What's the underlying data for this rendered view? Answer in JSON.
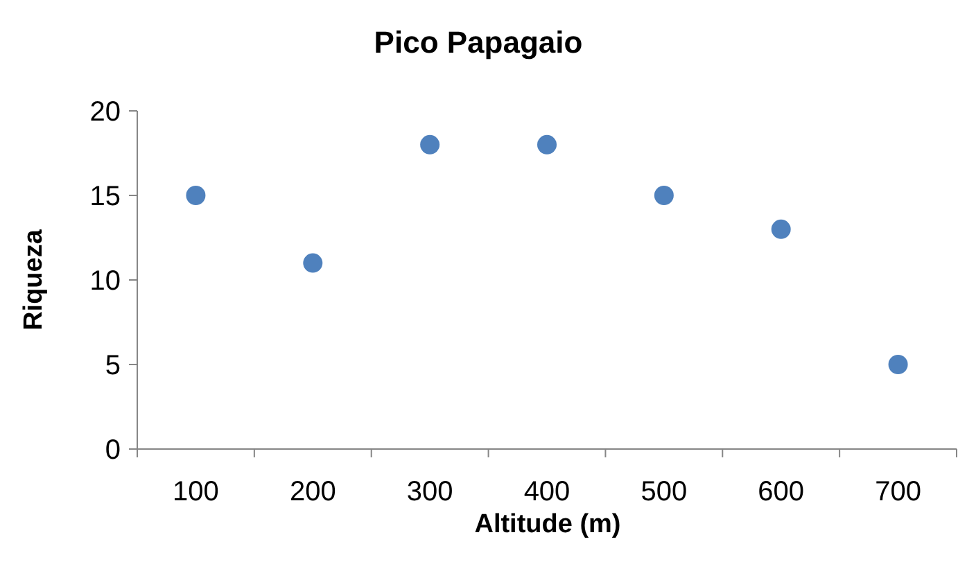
{
  "chart_data": {
    "type": "scatter",
    "title": "Pico Papagaio",
    "xlabel": "Altitude (m)",
    "ylabel": "Riqueza",
    "categories": [
      "100",
      "200",
      "300",
      "400",
      "500",
      "600",
      "700"
    ],
    "series": [
      {
        "color": "#4f81bd",
        "values": [
          15,
          11,
          18,
          18,
          15,
          13,
          5
        ]
      }
    ],
    "ylim": [
      0,
      20
    ],
    "yticks": [
      0,
      5,
      10,
      15,
      20
    ],
    "marker": "circle",
    "grid": false
  }
}
